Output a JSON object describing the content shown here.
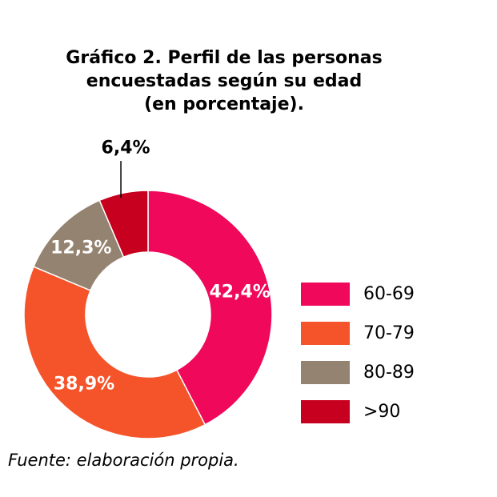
{
  "title_lines": [
    "Gráfico 2. Perfil de las personas",
    "encuestadas según su edad",
    "(en porcentaje)."
  ],
  "source": "Fuente: elaboración propia.",
  "chart_data": {
    "type": "pie",
    "variant": "donut",
    "title": "Gráfico 2. Perfil de las personas encuestadas según su edad (en porcentaje).",
    "categories": [
      "60-69",
      "70-79",
      "80-89",
      ">90"
    ],
    "values": [
      42.4,
      38.9,
      12.3,
      6.4
    ],
    "value_labels": [
      "42,4%",
      "38,9%",
      "12,3%",
      "6,4%"
    ],
    "colors": [
      "#F0085A",
      "#F5542A",
      "#958371",
      "#C8001F"
    ],
    "start_angle_deg": 0,
    "direction": "clockwise",
    "legend_position": "right"
  }
}
